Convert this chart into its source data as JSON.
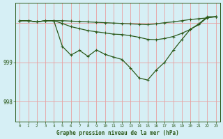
{
  "x": [
    0,
    1,
    2,
    3,
    4,
    5,
    6,
    7,
    8,
    9,
    10,
    11,
    12,
    13,
    14,
    15,
    16,
    17,
    18,
    19,
    20,
    21,
    22,
    23
  ],
  "top_line": [
    1000.05,
    1000.05,
    1000.02,
    1000.05,
    1000.05,
    1000.05,
    1000.04,
    1000.03,
    1000.02,
    1000.01,
    1000.0,
    999.99,
    999.98,
    999.97,
    999.96,
    999.95,
    999.97,
    1000.0,
    1000.02,
    1000.05,
    1000.08,
    1000.1,
    1000.12,
    1000.15
  ],
  "mid_line": [
    1000.05,
    1000.05,
    1000.02,
    1000.05,
    1000.05,
    999.98,
    999.9,
    999.85,
    999.8,
    999.77,
    999.74,
    999.71,
    999.7,
    999.67,
    999.63,
    999.58,
    999.57,
    999.6,
    999.65,
    999.73,
    999.83,
    999.95,
    1000.13,
    1000.15
  ],
  "bot_line": [
    1000.05,
    1000.05,
    1000.02,
    1000.05,
    1000.05,
    999.4,
    999.18,
    999.3,
    999.15,
    999.31,
    999.2,
    999.13,
    999.07,
    998.85,
    998.6,
    998.55,
    998.8,
    999.0,
    999.3,
    999.57,
    999.83,
    999.97,
    1000.15,
    1000.15
  ],
  "bg_color": "#d6eff5",
  "line_color": "#2d5a1b",
  "grid_color_v": "#e8a0a0",
  "grid_color_h": "#e8a0a0",
  "ylim": [
    997.5,
    1000.5
  ],
  "yticks": [
    998.0,
    999.0
  ],
  "xlabel": "Graphe pression niveau de la mer (hPa)"
}
